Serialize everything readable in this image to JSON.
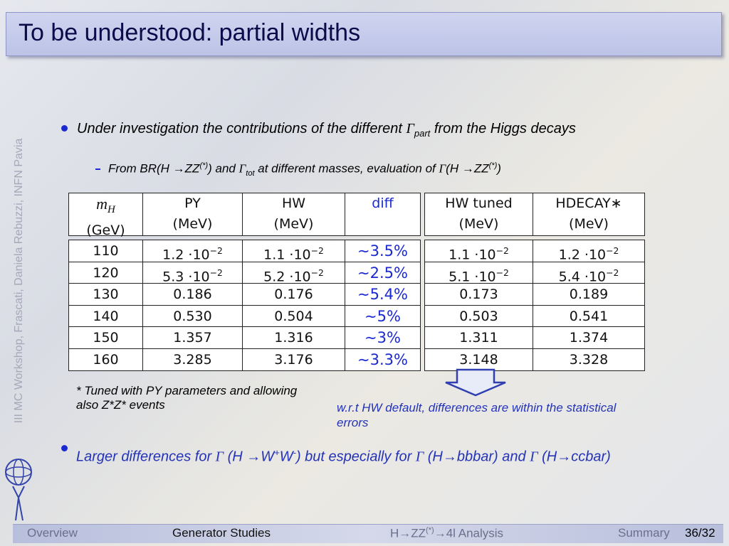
{
  "title": "To be understood: partial widths",
  "side_label": "III MC Workshop, Frascati, Daniela Rebuzzi, INFN Pavia",
  "bullet_1": [
    "Under investigation the contributions of the different ",
    "Γ",
    "part",
    " from the Higgs decays"
  ],
  "sub_bullet": [
    "From BR(H →ZZ",
    "(*)",
    ") and ",
    "Γ",
    "tot",
    " at different masses, evaluation of ",
    "Γ",
    "(H →ZZ",
    "(*)",
    ")"
  ],
  "table": {
    "columns": [
      {
        "name": [
          "m",
          "H"
        ],
        "unit": "(GeV)"
      },
      {
        "name": [
          "PY"
        ],
        "unit": "(MeV)"
      },
      {
        "name": [
          "HW"
        ],
        "unit": "(MeV)"
      },
      {
        "name": [
          "diff"
        ]
      },
      {
        "name": [
          "HW tuned"
        ],
        "unit": "(MeV)"
      },
      {
        "name": [
          "HDECAY∗"
        ],
        "unit": "(MeV)"
      }
    ],
    "rows": [
      [
        "110",
        [
          "1.2 ·10",
          "−2"
        ],
        [
          "1.1 ·10",
          "−2"
        ],
        "∼3.5%",
        [
          "1.1 ·10",
          "−2"
        ],
        [
          "1.2 ·10",
          "−2"
        ]
      ],
      [
        "120",
        [
          "5.3 ·10",
          "−2"
        ],
        [
          "5.2 ·10",
          "−2"
        ],
        "∼2.5%",
        [
          "5.1 ·10",
          "−2"
        ],
        [
          "5.4 ·10",
          "−2"
        ]
      ],
      [
        "130",
        "0.186",
        "0.176",
        "∼5.4%",
        "0.173",
        "0.189"
      ],
      [
        "140",
        "0.530",
        "0.504",
        "∼5%",
        "0.503",
        "0.541"
      ],
      [
        "150",
        "1.357",
        "1.316",
        "∼3%",
        "1.311",
        "1.374"
      ],
      [
        "160",
        "3.285",
        "3.176",
        "∼3.3%",
        "3.148",
        "3.328"
      ]
    ]
  },
  "footnote": "* Tuned with PY parameters and allowing also Z*Z* events",
  "note": "w.r.t HW default, differences are within the statistical errors",
  "bullet_2": [
    "Larger differences for ",
    "Γ",
    " (H →W",
    "+",
    "W",
    "-",
    ")  but especially for ",
    "Γ",
    " (H→bbbar) and ",
    "Γ",
    " (H→ccbar)"
  ],
  "footer": {
    "sections": [
      "Overview",
      "Generator Studies",
      "H→ZZ",
      "(*)",
      "→4l Analysis",
      "Summary"
    ],
    "page": "36/32"
  }
}
